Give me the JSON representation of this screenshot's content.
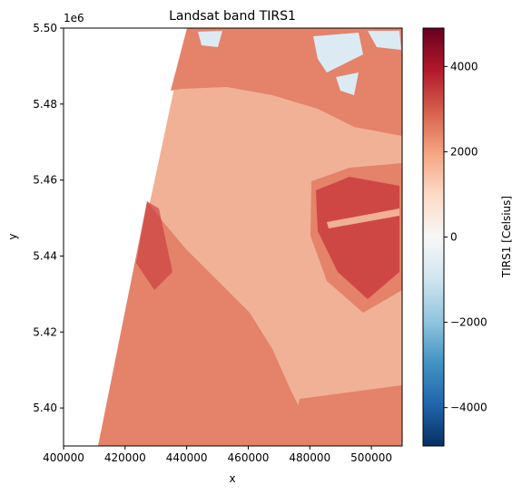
{
  "chart_data": {
    "type": "heatmap",
    "title": "Landsat band TIRS1",
    "xlabel": "x",
    "ylabel": "y",
    "xlim": [
      400000,
      510000
    ],
    "ylim": [
      5390000,
      5500000
    ],
    "x_ticks": [
      400000,
      420000,
      440000,
      460000,
      480000,
      500000
    ],
    "x_tick_labels": [
      "400000",
      "420000",
      "440000",
      "460000",
      "480000",
      "500000"
    ],
    "y_ticks": [
      5400000,
      5420000,
      5440000,
      5460000,
      5480000,
      5500000
    ],
    "y_tick_labels": [
      "5.40",
      "5.42",
      "5.44",
      "5.46",
      "5.48",
      "5.50"
    ],
    "y_offset_label": "1e6",
    "colorbar": {
      "label": "TIRS1 [Celsius]",
      "colormap": "RdBu_r",
      "vmin": -4900,
      "vmax": 4900,
      "ticks": [
        -4000,
        -2000,
        0,
        2000,
        4000
      ],
      "tick_labels": [
        "−4000",
        "−2000",
        "0",
        "2000",
        "4000"
      ],
      "colors": [
        "#053061",
        "#2166ac",
        "#4393c3",
        "#92c5de",
        "#d1e5f0",
        "#f7f7f7",
        "#fddbc7",
        "#f4a582",
        "#d6604d",
        "#b2182b",
        "#67001f"
      ]
    },
    "image_colors": {
      "water": "#f1b196",
      "land": "#e4826a",
      "hot": "#c8333a",
      "cold": "#dcebf3"
    },
    "grid": false
  }
}
